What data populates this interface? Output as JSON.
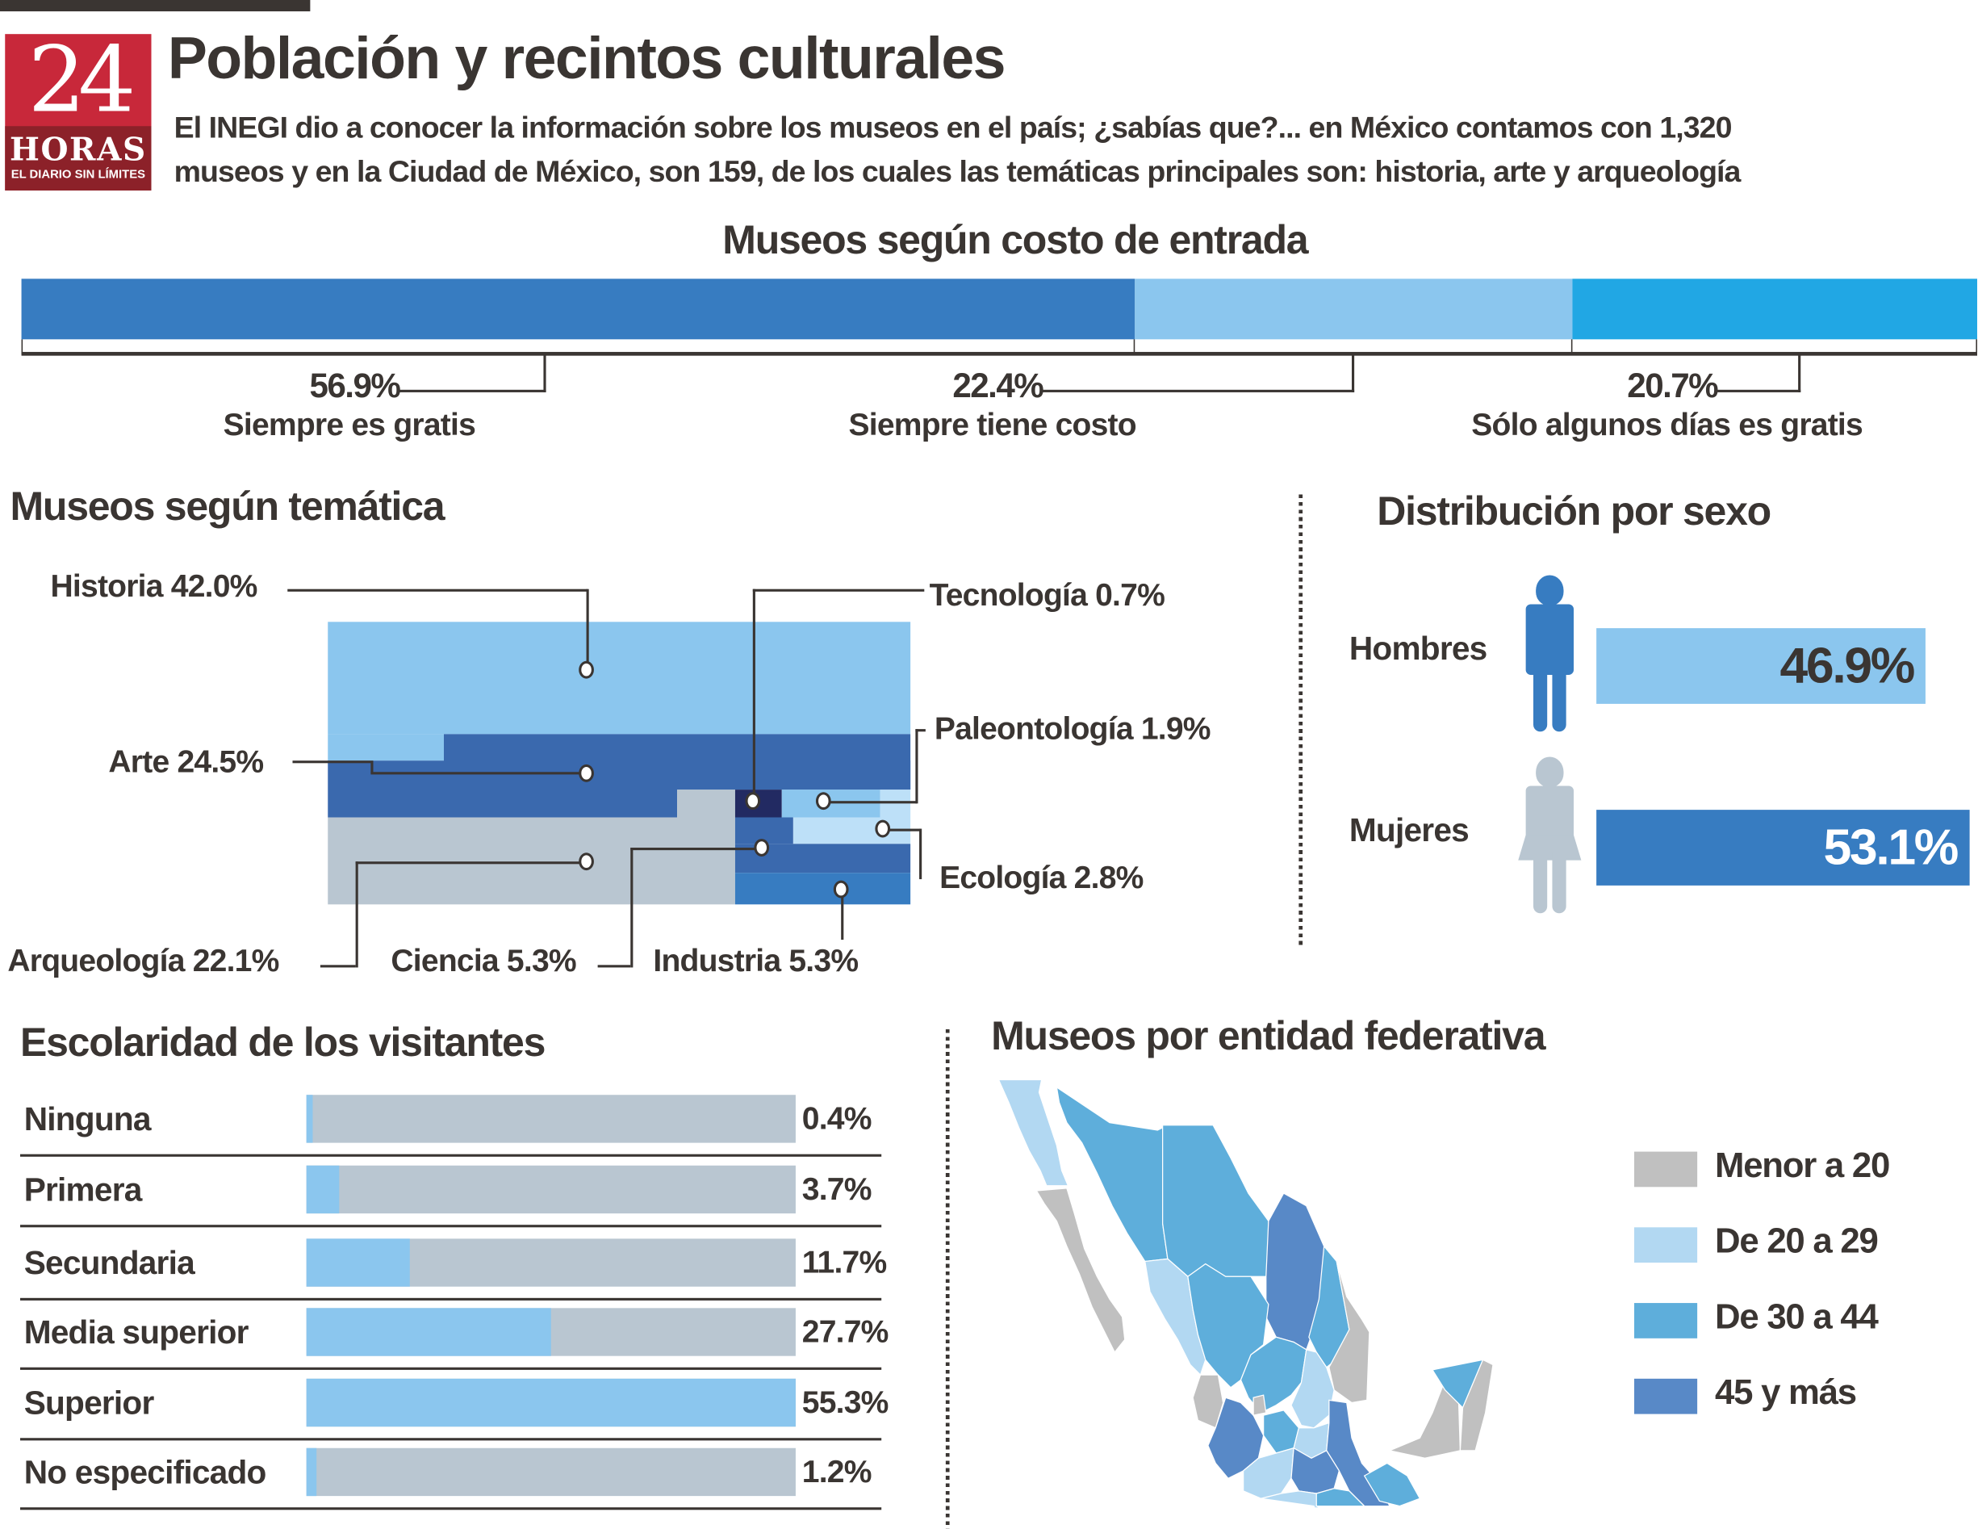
{
  "header": {
    "logo_number": "24",
    "logo_name": "HORAS",
    "logo_tagline": "EL DIARIO SIN LÍMITES",
    "title": "Población y recintos culturales",
    "intro_line1": "El INEGI dio a conocer la información sobre los museos en el país; ¿sabías que?... en México contamos con 1,320",
    "intro_line2": "museos y en la Ciudad de México, son 159, de los cuales las temáticas principales son: historia, arte y arqueología"
  },
  "colors": {
    "text": "#3a3532",
    "brand_red": "#c8283a",
    "dark_red": "#8c2129",
    "blue_dark": "#377cc1",
    "blue_light": "#8bc6ee",
    "blue_bright": "#21a7e4",
    "gray_blue": "#b9c6d1"
  },
  "chart_data": [
    {
      "type": "bar",
      "subtype": "stacked-100",
      "title": "Museos según costo de entrada",
      "categories": [
        "Siempre es gratis",
        "Siempre tiene costo",
        "Sólo algunos días es gratis"
      ],
      "values": [
        56.9,
        22.4,
        20.7
      ],
      "labels": [
        "56.9%",
        "22.4%",
        "20.7%"
      ],
      "colors": [
        "#377cc1",
        "#8bc6ee",
        "#21a7e4"
      ],
      "unit": "%"
    },
    {
      "type": "treemap",
      "title": "Museos según temática",
      "categories": [
        "Historia",
        "Arte",
        "Arqueología",
        "Tecnología",
        "Paleontología",
        "Ecología",
        "Ciencia",
        "Industria"
      ],
      "values": [
        42.0,
        24.5,
        22.1,
        0.7,
        1.9,
        2.8,
        5.3,
        5.3
      ],
      "labels": [
        "Historia 42.0%",
        "Arte 24.5%",
        "Arqueología  22.1%",
        "Tecnología 0.7%",
        "Paleontología 1.9%",
        "Ecología 2.8%",
        "Ciencia 5.3%",
        "Industria 5.3%"
      ],
      "colors": [
        "#8bc6ee",
        "#3a69ae",
        "#b9c6d1",
        "#222a62",
        "#8bc6ee",
        "#bde0f8",
        "#3a69ae",
        "#377cc1"
      ],
      "unit": "%"
    },
    {
      "type": "bar",
      "title": "Distribución por sexo",
      "categories": [
        "Hombres",
        "Mujeres"
      ],
      "values": [
        46.9,
        53.1
      ],
      "labels": [
        "46.9%",
        "53.1%"
      ],
      "colors": [
        "#8bc6ee",
        "#377cc1"
      ],
      "icons": [
        "man-icon",
        "woman-icon"
      ],
      "unit": "%"
    },
    {
      "type": "bar",
      "orientation": "horizontal",
      "title": "Escolaridad de los visitantes",
      "categories": [
        "Ninguna",
        "Primera",
        "Secundaria",
        "Media superior",
        "Superior",
        "No especificado"
      ],
      "values": [
        0.4,
        3.7,
        11.7,
        27.7,
        55.3,
        1.2
      ],
      "labels": [
        "0.4%",
        "3.7%",
        "11.7%",
        "27.7%",
        "55.3%",
        "1.2%"
      ],
      "xlim": [
        0,
        55.3
      ],
      "colors": {
        "fill": "#8bc6ee",
        "track": "#b9c6d1"
      },
      "unit": "%"
    },
    {
      "type": "choropleth",
      "title": "Museos por entidad federativa",
      "legend": [
        {
          "label": "Menor a 20",
          "color": "#c0c0c0"
        },
        {
          "label": "De 20 a 29",
          "color": "#b2d8f2"
        },
        {
          "label": "De 30 a 44",
          "color": "#5eaedb"
        },
        {
          "label": "45 y más",
          "color": "#5889c7"
        }
      ],
      "legend_position": "right"
    }
  ]
}
